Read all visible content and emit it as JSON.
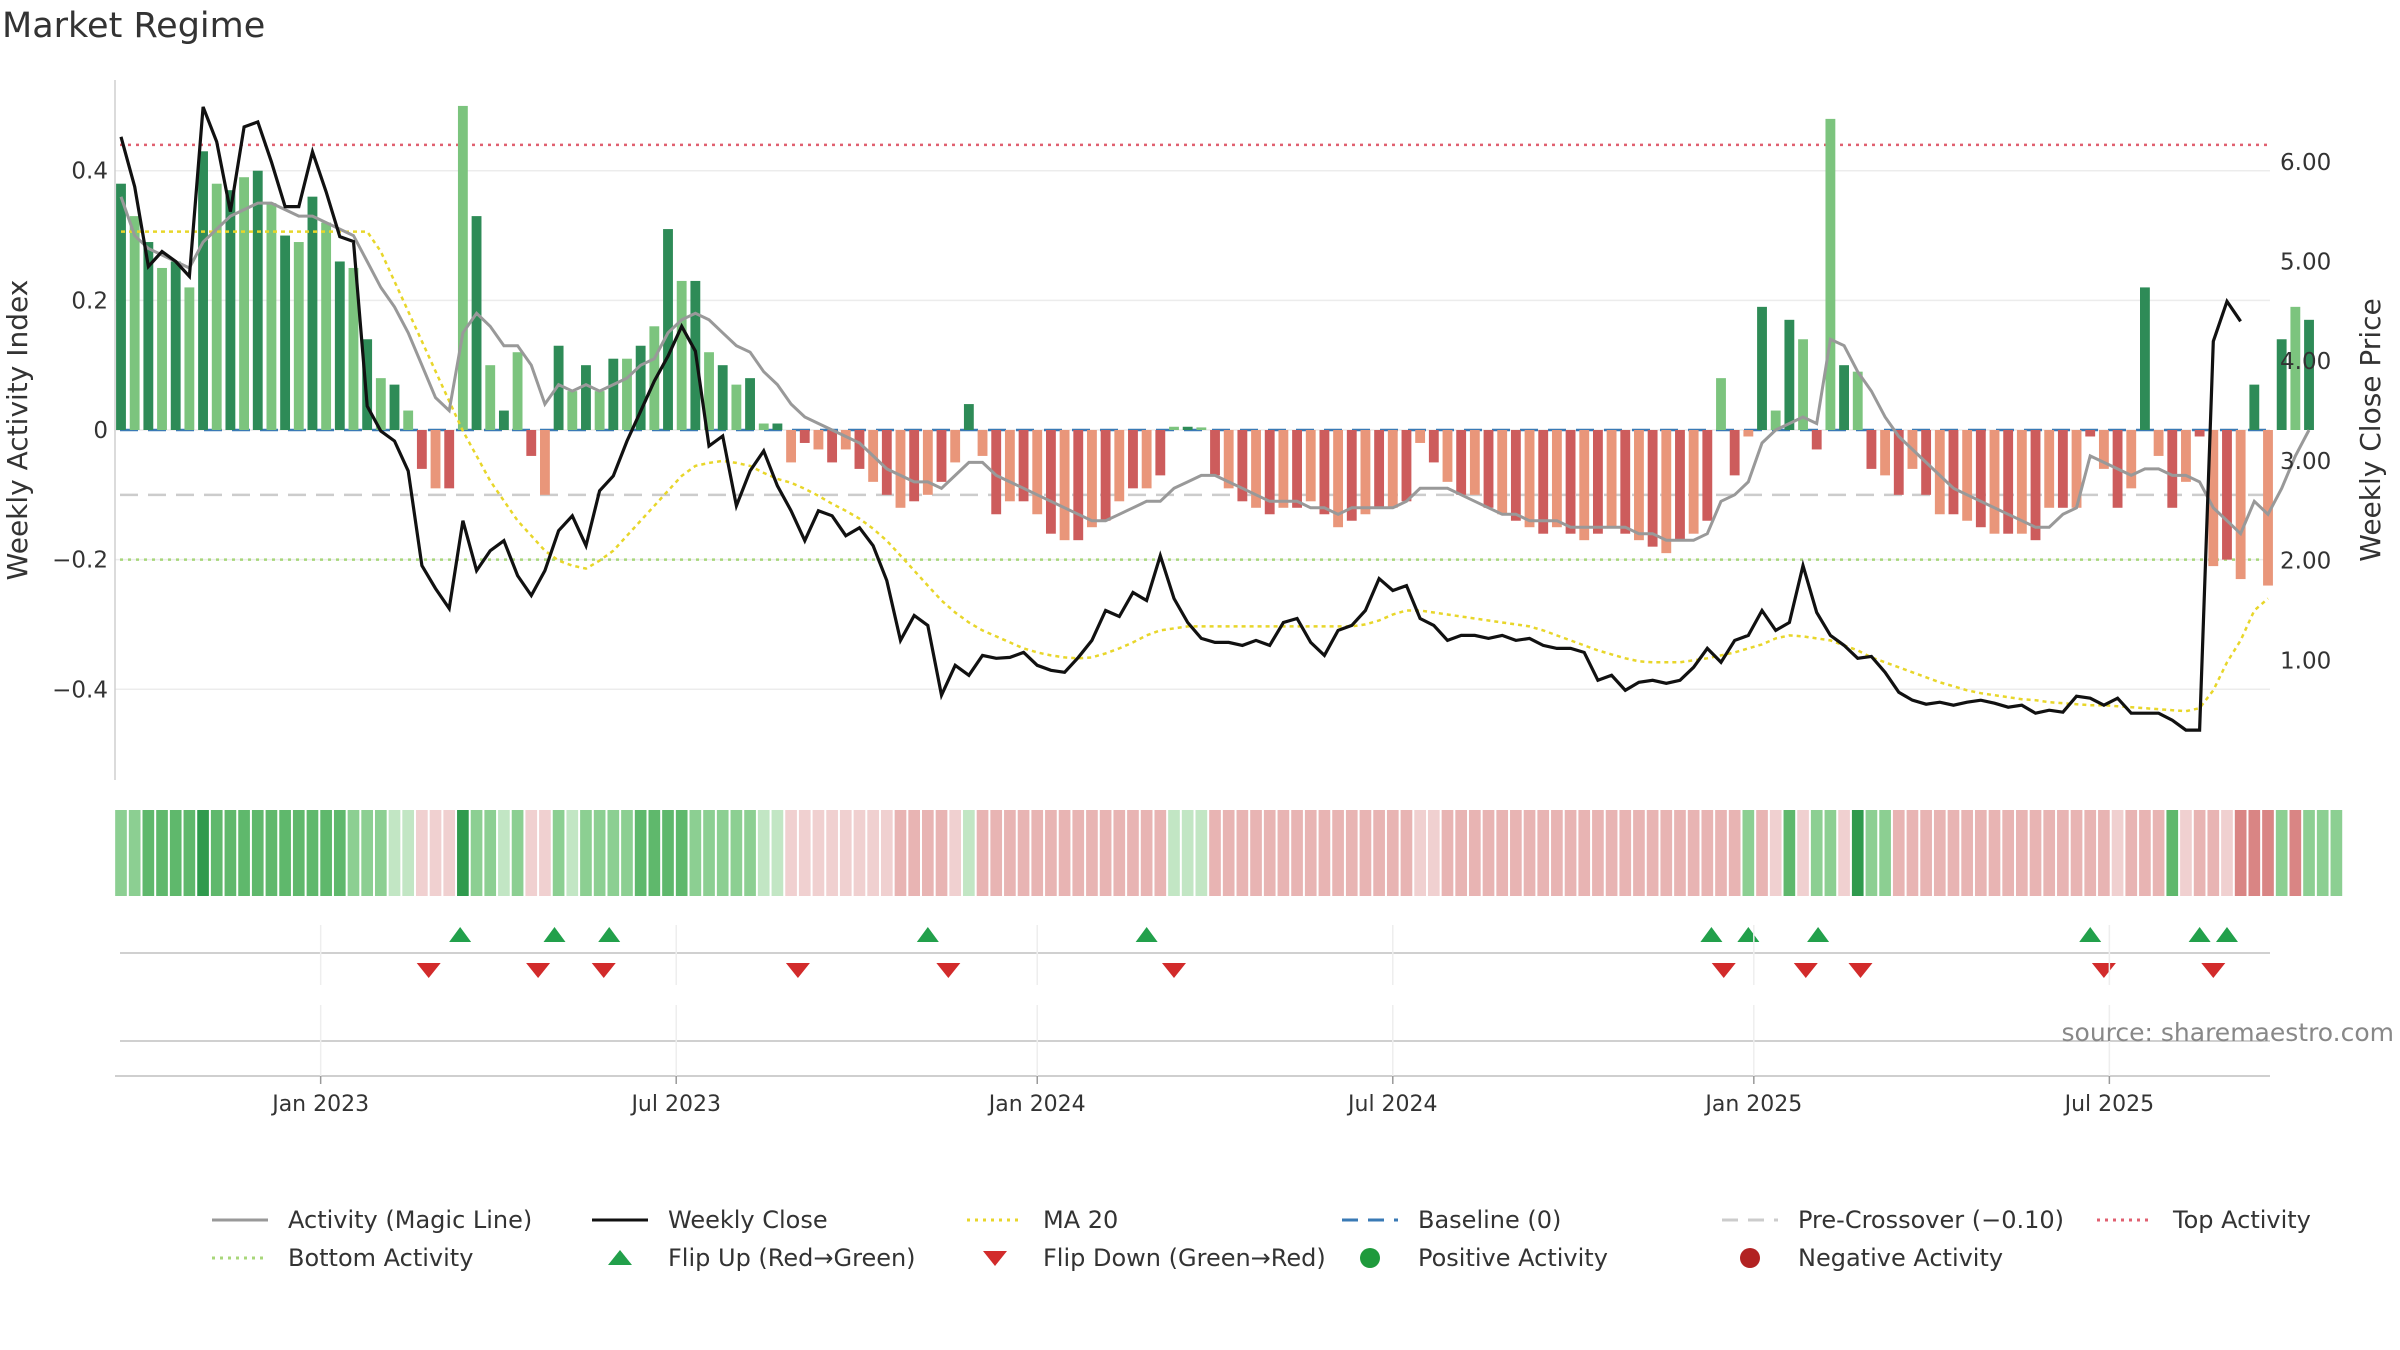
{
  "title": "Market Regime",
  "source": "source: sharemaestro.com",
  "chart_data": {
    "type": "bar",
    "y_left_label": "Weekly Activity Index",
    "y_right_label": "Weekly Close Price",
    "y_left_ticks": [
      "0.4",
      "0.2",
      "0",
      "−0.2",
      "−0.4"
    ],
    "y_left_tick_values": [
      0.4,
      0.2,
      0,
      -0.2,
      -0.4
    ],
    "y_right_ticks": [
      "6.00",
      "5.00",
      "4.00",
      "3.00",
      "2.00",
      "1.00"
    ],
    "y_right_tick_values": [
      6,
      5,
      4,
      3,
      2,
      1
    ],
    "y_left_range": [
      -0.54,
      0.54
    ],
    "y_right_range": [
      -0.2,
      6.82
    ],
    "x_tick_labels": [
      "Jan 2023",
      "Jul 2023",
      "Jan 2024",
      "Jul 2024",
      "Jan 2025",
      "Jul 2025"
    ],
    "x_tick_weeks": [
      14.6,
      40.6,
      67,
      93,
      119.4,
      145.4
    ],
    "week_count": 158,
    "levels": {
      "top": 0.44,
      "bottom": -0.2,
      "pre_crossover": -0.1,
      "baseline": 0
    },
    "activity": [
      0.38,
      0.33,
      0.29,
      0.25,
      0.26,
      0.22,
      0.43,
      0.38,
      0.37,
      0.39,
      0.4,
      0.35,
      0.3,
      0.29,
      0.36,
      0.32,
      0.26,
      0.25,
      0.14,
      0.08,
      0.07,
      0.03,
      -0.06,
      -0.09,
      -0.09,
      0.5,
      0.33,
      0.1,
      0.03,
      0.12,
      -0.04,
      -0.1,
      0.13,
      0.06,
      0.1,
      0.06,
      0.11,
      0.11,
      0.13,
      0.16,
      0.31,
      0.23,
      0.23,
      0.12,
      0.1,
      0.07,
      0.08,
      0.01,
      0.01,
      -0.05,
      -0.02,
      -0.03,
      -0.05,
      -0.03,
      -0.06,
      -0.08,
      -0.1,
      -0.12,
      -0.11,
      -0.1,
      -0.08,
      -0.05,
      0.04,
      -0.04,
      -0.13,
      -0.11,
      -0.11,
      -0.13,
      -0.16,
      -0.17,
      -0.17,
      -0.15,
      -0.14,
      -0.11,
      -0.09,
      -0.09,
      -0.07,
      0.005,
      0.005,
      0.004,
      -0.07,
      -0.09,
      -0.11,
      -0.12,
      -0.13,
      -0.12,
      -0.12,
      -0.11,
      -0.13,
      -0.15,
      -0.14,
      -0.13,
      -0.12,
      -0.12,
      -0.11,
      -0.02,
      -0.05,
      -0.08,
      -0.1,
      -0.1,
      -0.12,
      -0.13,
      -0.14,
      -0.15,
      -0.16,
      -0.15,
      -0.16,
      -0.17,
      -0.16,
      -0.15,
      -0.16,
      -0.17,
      -0.18,
      -0.19,
      -0.17,
      -0.16,
      -0.14,
      0.08,
      -0.07,
      -0.01,
      0.19,
      0.03,
      0.17,
      0.14,
      -0.03,
      0.48,
      0.1,
      0.09,
      -0.06,
      -0.07,
      -0.1,
      -0.06,
      -0.1,
      -0.13,
      -0.13,
      -0.14,
      -0.15,
      -0.16,
      -0.16,
      -0.16,
      -0.17,
      -0.12,
      -0.12,
      -0.12,
      -0.01,
      -0.06,
      -0.12,
      -0.09,
      0.22,
      -0.04,
      -0.12,
      -0.08,
      -0.01,
      -0.21,
      -0.2,
      -0.23,
      0.07,
      -0.24,
      0.14,
      0.19,
      0.17
    ],
    "magic_line": [
      0.36,
      0.3,
      0.28,
      0.27,
      0.26,
      0.25,
      0.29,
      0.31,
      0.33,
      0.34,
      0.35,
      0.35,
      0.34,
      0.33,
      0.33,
      0.32,
      0.31,
      0.3,
      0.26,
      0.22,
      0.19,
      0.15,
      0.1,
      0.05,
      0.03,
      0.15,
      0.18,
      0.16,
      0.13,
      0.13,
      0.1,
      0.04,
      0.07,
      0.06,
      0.07,
      0.06,
      0.07,
      0.08,
      0.1,
      0.11,
      0.15,
      0.17,
      0.18,
      0.17,
      0.15,
      0.13,
      0.12,
      0.09,
      0.07,
      0.04,
      0.02,
      0.01,
      0.0,
      -0.01,
      -0.02,
      -0.04,
      -0.06,
      -0.07,
      -0.08,
      -0.08,
      -0.09,
      -0.07,
      -0.05,
      -0.05,
      -0.07,
      -0.08,
      -0.09,
      -0.1,
      -0.11,
      -0.12,
      -0.13,
      -0.14,
      -0.14,
      -0.13,
      -0.12,
      -0.11,
      -0.11,
      -0.09,
      -0.08,
      -0.07,
      -0.07,
      -0.08,
      -0.09,
      -0.1,
      -0.11,
      -0.11,
      -0.11,
      -0.12,
      -0.12,
      -0.13,
      -0.12,
      -0.12,
      -0.12,
      -0.12,
      -0.11,
      -0.09,
      -0.09,
      -0.09,
      -0.1,
      -0.11,
      -0.12,
      -0.13,
      -0.13,
      -0.14,
      -0.14,
      -0.14,
      -0.15,
      -0.15,
      -0.15,
      -0.15,
      -0.15,
      -0.16,
      -0.16,
      -0.17,
      -0.17,
      -0.17,
      -0.16,
      -0.11,
      -0.1,
      -0.08,
      -0.02,
      0.0,
      0.01,
      0.02,
      0.01,
      0.14,
      0.13,
      0.09,
      0.06,
      0.02,
      -0.01,
      -0.03,
      -0.05,
      -0.07,
      -0.09,
      -0.1,
      -0.11,
      -0.12,
      -0.13,
      -0.14,
      -0.15,
      -0.15,
      -0.13,
      -0.12,
      -0.04,
      -0.05,
      -0.06,
      -0.07,
      -0.06,
      -0.06,
      -0.07,
      -0.07,
      -0.08,
      -0.12,
      -0.14,
      -0.16,
      -0.11,
      -0.13,
      -0.09,
      -0.04,
      0.0
    ],
    "weekly_close": [
      6.25,
      5.75,
      4.95,
      5.1,
      5.0,
      4.85,
      6.55,
      6.2,
      5.5,
      6.35,
      6.4,
      6.0,
      5.55,
      5.55,
      6.1,
      5.7,
      5.25,
      5.2,
      3.55,
      3.3,
      3.2,
      2.9,
      1.95,
      1.72,
      1.52,
      2.4,
      1.9,
      2.1,
      2.2,
      1.85,
      1.65,
      1.9,
      2.3,
      2.45,
      2.15,
      2.7,
      2.85,
      3.2,
      3.5,
      3.8,
      4.05,
      4.35,
      4.1,
      3.15,
      3.25,
      2.55,
      2.9,
      3.1,
      2.75,
      2.5,
      2.2,
      2.5,
      2.45,
      2.25,
      2.33,
      2.15,
      1.8,
      1.2,
      1.45,
      1.35,
      0.65,
      0.95,
      0.85,
      1.05,
      1.02,
      1.03,
      1.08,
      0.95,
      0.9,
      0.88,
      1.03,
      1.2,
      1.5,
      1.44,
      1.68,
      1.6,
      2.05,
      1.62,
      1.38,
      1.22,
      1.18,
      1.18,
      1.15,
      1.2,
      1.15,
      1.38,
      1.42,
      1.18,
      1.05,
      1.3,
      1.35,
      1.5,
      1.82,
      1.7,
      1.75,
      1.42,
      1.35,
      1.2,
      1.25,
      1.25,
      1.22,
      1.25,
      1.2,
      1.22,
      1.15,
      1.12,
      1.12,
      1.08,
      0.8,
      0.85,
      0.7,
      0.78,
      0.8,
      0.77,
      0.8,
      0.93,
      1.12,
      0.98,
      1.2,
      1.25,
      1.5,
      1.3,
      1.38,
      1.95,
      1.48,
      1.25,
      1.15,
      1.02,
      1.04,
      0.88,
      0.68,
      0.6,
      0.56,
      0.58,
      0.55,
      0.58,
      0.6,
      0.57,
      0.53,
      0.55,
      0.47,
      0.5,
      0.48,
      0.64,
      0.62,
      0.55,
      0.62,
      0.47,
      0.47,
      0.47,
      0.4,
      0.3,
      0.3,
      4.2,
      4.6,
      4.4
    ],
    "ma20": [
      5.3,
      5.3,
      5.3,
      5.3,
      5.3,
      5.3,
      5.3,
      5.3,
      5.3,
      5.3,
      5.3,
      5.3,
      5.3,
      5.3,
      5.3,
      5.3,
      5.3,
      5.3,
      5.3,
      5.1,
      4.8,
      4.5,
      4.2,
      3.9,
      3.6,
      3.3,
      3.05,
      2.8,
      2.6,
      2.4,
      2.25,
      2.1,
      2.0,
      1.95,
      1.92,
      2.0,
      2.1,
      2.25,
      2.4,
      2.55,
      2.7,
      2.85,
      2.95,
      2.98,
      3.0,
      2.98,
      2.95,
      2.88,
      2.82,
      2.78,
      2.72,
      2.65,
      2.57,
      2.5,
      2.42,
      2.32,
      2.2,
      2.05,
      1.9,
      1.75,
      1.6,
      1.48,
      1.38,
      1.3,
      1.24,
      1.18,
      1.12,
      1.08,
      1.05,
      1.03,
      1.02,
      1.03,
      1.07,
      1.12,
      1.18,
      1.25,
      1.3,
      1.32,
      1.34,
      1.34,
      1.34,
      1.34,
      1.34,
      1.34,
      1.34,
      1.34,
      1.34,
      1.34,
      1.34,
      1.34,
      1.34,
      1.36,
      1.4,
      1.46,
      1.5,
      1.5,
      1.48,
      1.46,
      1.44,
      1.42,
      1.4,
      1.38,
      1.36,
      1.34,
      1.3,
      1.25,
      1.2,
      1.15,
      1.1,
      1.06,
      1.02,
      0.99,
      0.98,
      0.98,
      0.98,
      1.0,
      1.02,
      1.05,
      1.08,
      1.12,
      1.16,
      1.22,
      1.25,
      1.24,
      1.22,
      1.2,
      1.15,
      1.1,
      1.03,
      0.98,
      0.93,
      0.88,
      0.83,
      0.78,
      0.74,
      0.7,
      0.67,
      0.65,
      0.63,
      0.61,
      0.6,
      0.58,
      0.57,
      0.56,
      0.55,
      0.55,
      0.54,
      0.53,
      0.52,
      0.51,
      0.5,
      0.49,
      0.52,
      0.7,
      0.98,
      1.2,
      1.5,
      1.62
    ],
    "regime_strip_shading": [
      2,
      2,
      3,
      3,
      3,
      3,
      4,
      3,
      3,
      3,
      3,
      3,
      3,
      3,
      3,
      3,
      3,
      2,
      2,
      2,
      1,
      1,
      -1,
      -1,
      -1,
      4,
      2,
      2,
      1,
      2,
      -1,
      -1,
      2,
      1,
      2,
      2,
      2,
      2,
      3,
      3,
      3,
      3,
      2,
      2,
      2,
      2,
      2,
      1,
      1,
      -1,
      -1,
      -1,
      -1,
      -1,
      -1,
      -1,
      -1,
      -2,
      -2,
      -2,
      -2,
      -1,
      1,
      -2,
      -2,
      -2,
      -2,
      -2,
      -2,
      -2,
      -2,
      -2,
      -2,
      -2,
      -2,
      -2,
      -2,
      1,
      1,
      1,
      -2,
      -2,
      -2,
      -2,
      -2,
      -2,
      -2,
      -2,
      -2,
      -2,
      -2,
      -2,
      -2,
      -2,
      -2,
      -1,
      -1,
      -2,
      -2,
      -2,
      -2,
      -2,
      -2,
      -2,
      -2,
      -2,
      -2,
      -2,
      -2,
      -2,
      -2,
      -2,
      -2,
      -2,
      -2,
      -2,
      -2,
      -2,
      -2,
      2,
      -2,
      -1,
      3,
      -1,
      2,
      2,
      -1,
      4,
      2,
      2,
      -2,
      -2,
      -2,
      -2,
      -2,
      -2,
      -2,
      -2,
      -2,
      -2,
      -2,
      -2,
      -2,
      -2,
      -2,
      -2,
      -1,
      -2,
      -2,
      -2,
      3,
      -1,
      -2,
      -2,
      -1,
      -3,
      -3,
      -3,
      2,
      -3,
      2,
      2,
      2
    ],
    "flip_up_weeks": [
      24.8,
      31.7,
      35.7,
      59.0,
      75.0,
      116.3,
      119.0,
      124.1,
      144.0,
      152.0,
      154.0
    ],
    "flip_down_weeks": [
      22.5,
      30.5,
      35.3,
      49.5,
      60.5,
      77.0,
      117.2,
      123.2,
      127.2,
      145.0,
      153.0
    ],
    "series": [
      {
        "name": "Activity (Magic Line)",
        "color": "#999999",
        "style": "solid"
      },
      {
        "name": "Weekly Close",
        "color": "#111111",
        "style": "solid"
      },
      {
        "name": "MA 20",
        "color": "#e8d62a",
        "style": "dotted"
      },
      {
        "name": "Baseline (0)",
        "color": "#3a7ab5",
        "style": "dashed"
      },
      {
        "name": "Pre-Crossover (−0.10)",
        "color": "#cccccc",
        "style": "dashed"
      },
      {
        "name": "Top Activity",
        "color": "#e06070",
        "style": "dotted"
      },
      {
        "name": "Bottom Activity",
        "color": "#a8d77a",
        "style": "dotted"
      },
      {
        "name": "Flip Up (Red→Green)",
        "color": "#22a04b",
        "style": "marker-up"
      },
      {
        "name": "Flip Down (Green→Red)",
        "color": "#d22b2b",
        "style": "marker-down"
      },
      {
        "name": "Positive Activity",
        "color": "#1f9a3c",
        "style": "marker-dot"
      },
      {
        "name": "Negative Activity",
        "color": "#b22222",
        "style": "marker-dot"
      }
    ],
    "colors": {
      "pos_strong": "#2e8b57",
      "pos_light": "#7cc47e",
      "neg_strong": "#cd5c5c",
      "neg_light": "#e9967a"
    }
  }
}
